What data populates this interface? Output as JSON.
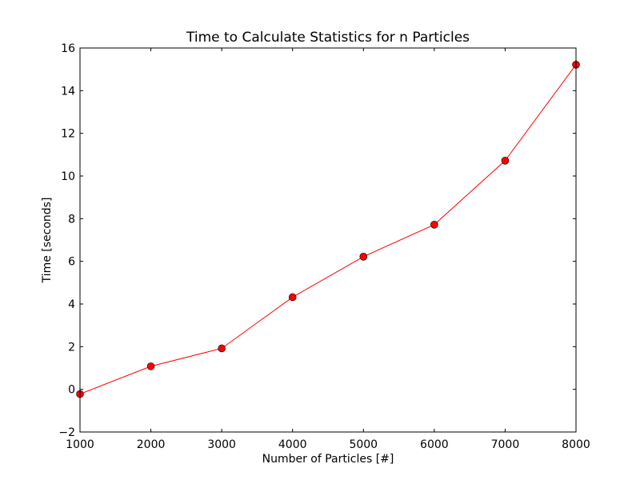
{
  "chart_data": {
    "type": "line",
    "title": "Time to Calculate Statistics for n Particles",
    "xlabel": "Number of Particles [#]",
    "ylabel": "Time [seconds]",
    "xlim": [
      1000,
      8000
    ],
    "ylim": [
      -2,
      16
    ],
    "xticks": [
      1000,
      2000,
      3000,
      4000,
      5000,
      6000,
      7000,
      8000
    ],
    "yticks": [
      -2,
      0,
      2,
      4,
      6,
      8,
      10,
      12,
      14,
      16
    ],
    "xtick_labels": [
      "1000",
      "2000",
      "3000",
      "4000",
      "5000",
      "6000",
      "7000",
      "8000"
    ],
    "ytick_labels": [
      "−2",
      "0",
      "2",
      "4",
      "6",
      "8",
      "10",
      "12",
      "14",
      "16"
    ],
    "grid": false,
    "series": [
      {
        "color": "#ff0000",
        "marker": "circle",
        "x": [
          1000,
          2000,
          3000,
          4000,
          5000,
          6000,
          7000,
          8000
        ],
        "y": [
          -0.22,
          1.08,
          1.92,
          4.32,
          6.22,
          7.72,
          10.72,
          15.22
        ]
      }
    ]
  }
}
